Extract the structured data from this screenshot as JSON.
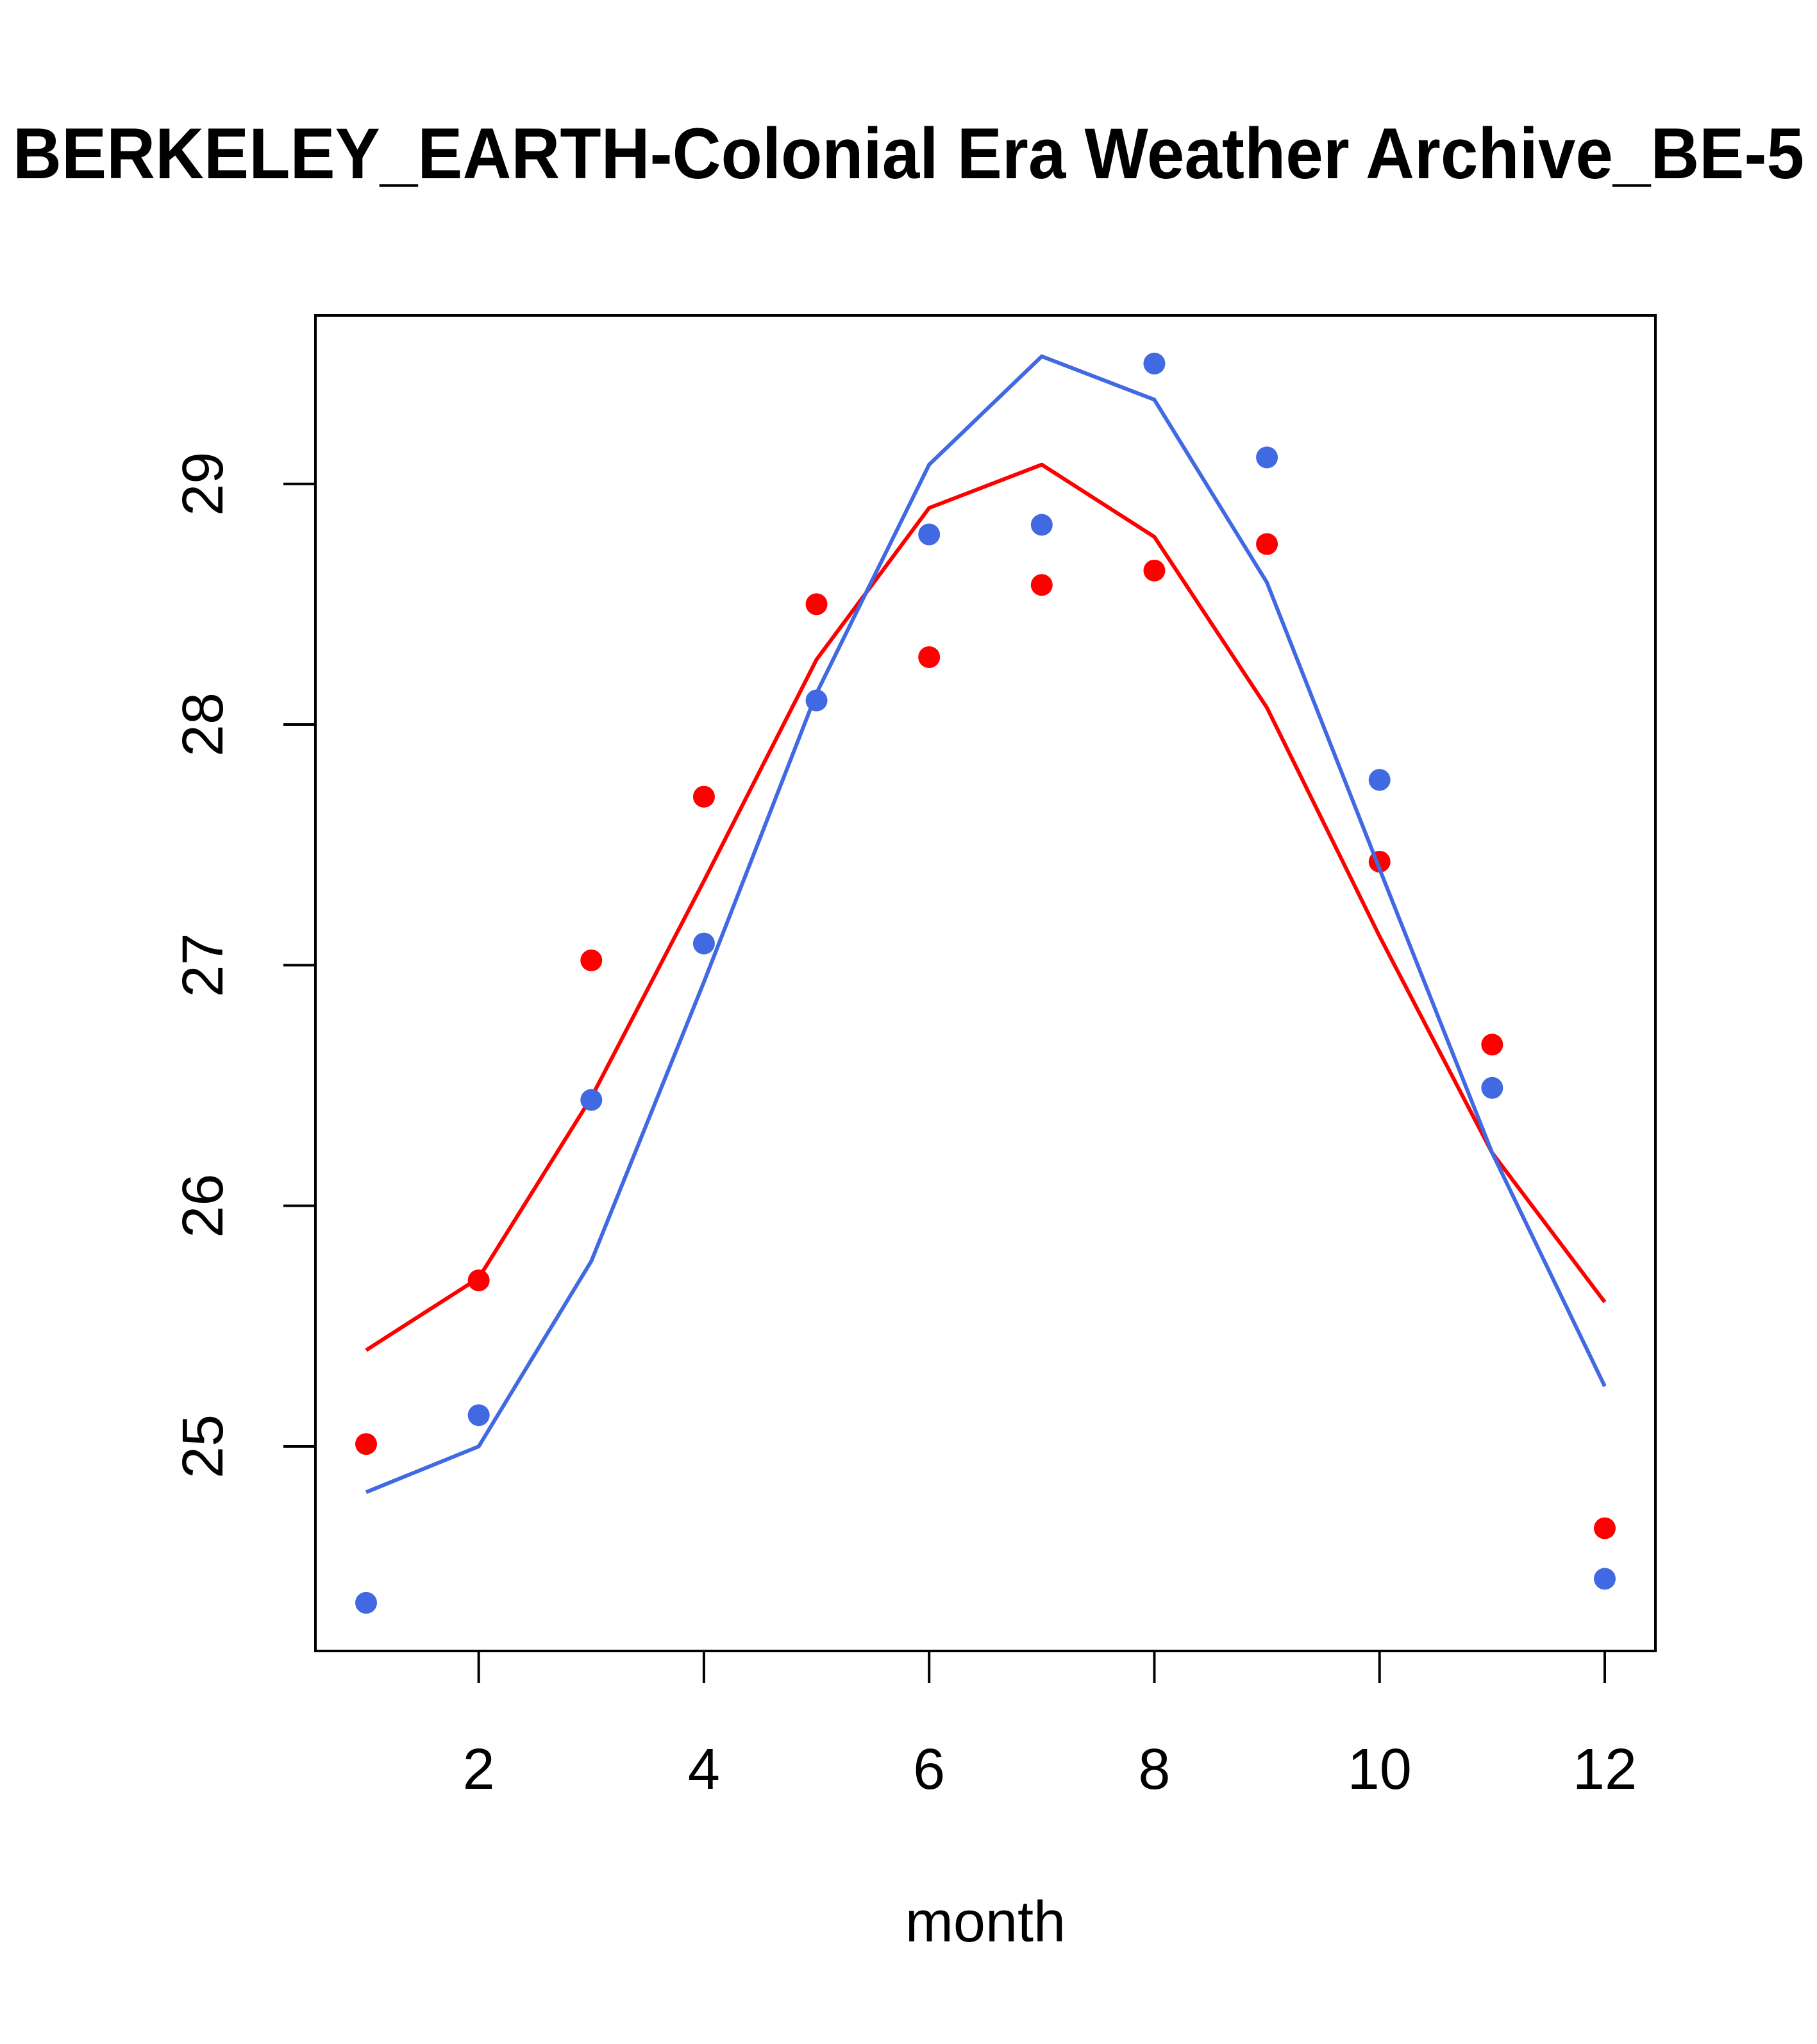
{
  "chart_data": {
    "type": "line",
    "title": "BERKELEY_EARTH-Colonial Era Weather Archive_BE-5",
    "xlabel": "month",
    "ylabel": "",
    "xlim": [
      0.55,
      12.45
    ],
    "ylim": [
      24.15,
      29.7
    ],
    "x_ticks": [
      2,
      4,
      6,
      8,
      10,
      12
    ],
    "y_ticks": [
      25,
      26,
      27,
      28,
      29
    ],
    "x": [
      1,
      2,
      3,
      4,
      5,
      6,
      7,
      8,
      9,
      10,
      11,
      12
    ],
    "series": [
      {
        "color": "#ff0000",
        "line": [
          25.4,
          25.7,
          26.45,
          27.35,
          28.27,
          28.9,
          29.08,
          28.78,
          28.07,
          27.12,
          26.22,
          25.6
        ],
        "points": [
          25.01,
          25.69,
          27.02,
          27.7,
          28.5,
          28.28,
          28.58,
          28.64,
          28.75,
          27.43,
          26.67,
          24.66
        ]
      },
      {
        "color": "#4169e1",
        "line": [
          24.81,
          25.0,
          25.77,
          26.93,
          28.13,
          29.08,
          29.53,
          29.35,
          28.59,
          27.4,
          26.22,
          25.25
        ],
        "points": [
          24.35,
          25.13,
          26.44,
          27.09,
          28.1,
          28.79,
          28.83,
          29.5,
          29.11,
          27.77,
          26.49,
          24.45
        ]
      }
    ]
  }
}
